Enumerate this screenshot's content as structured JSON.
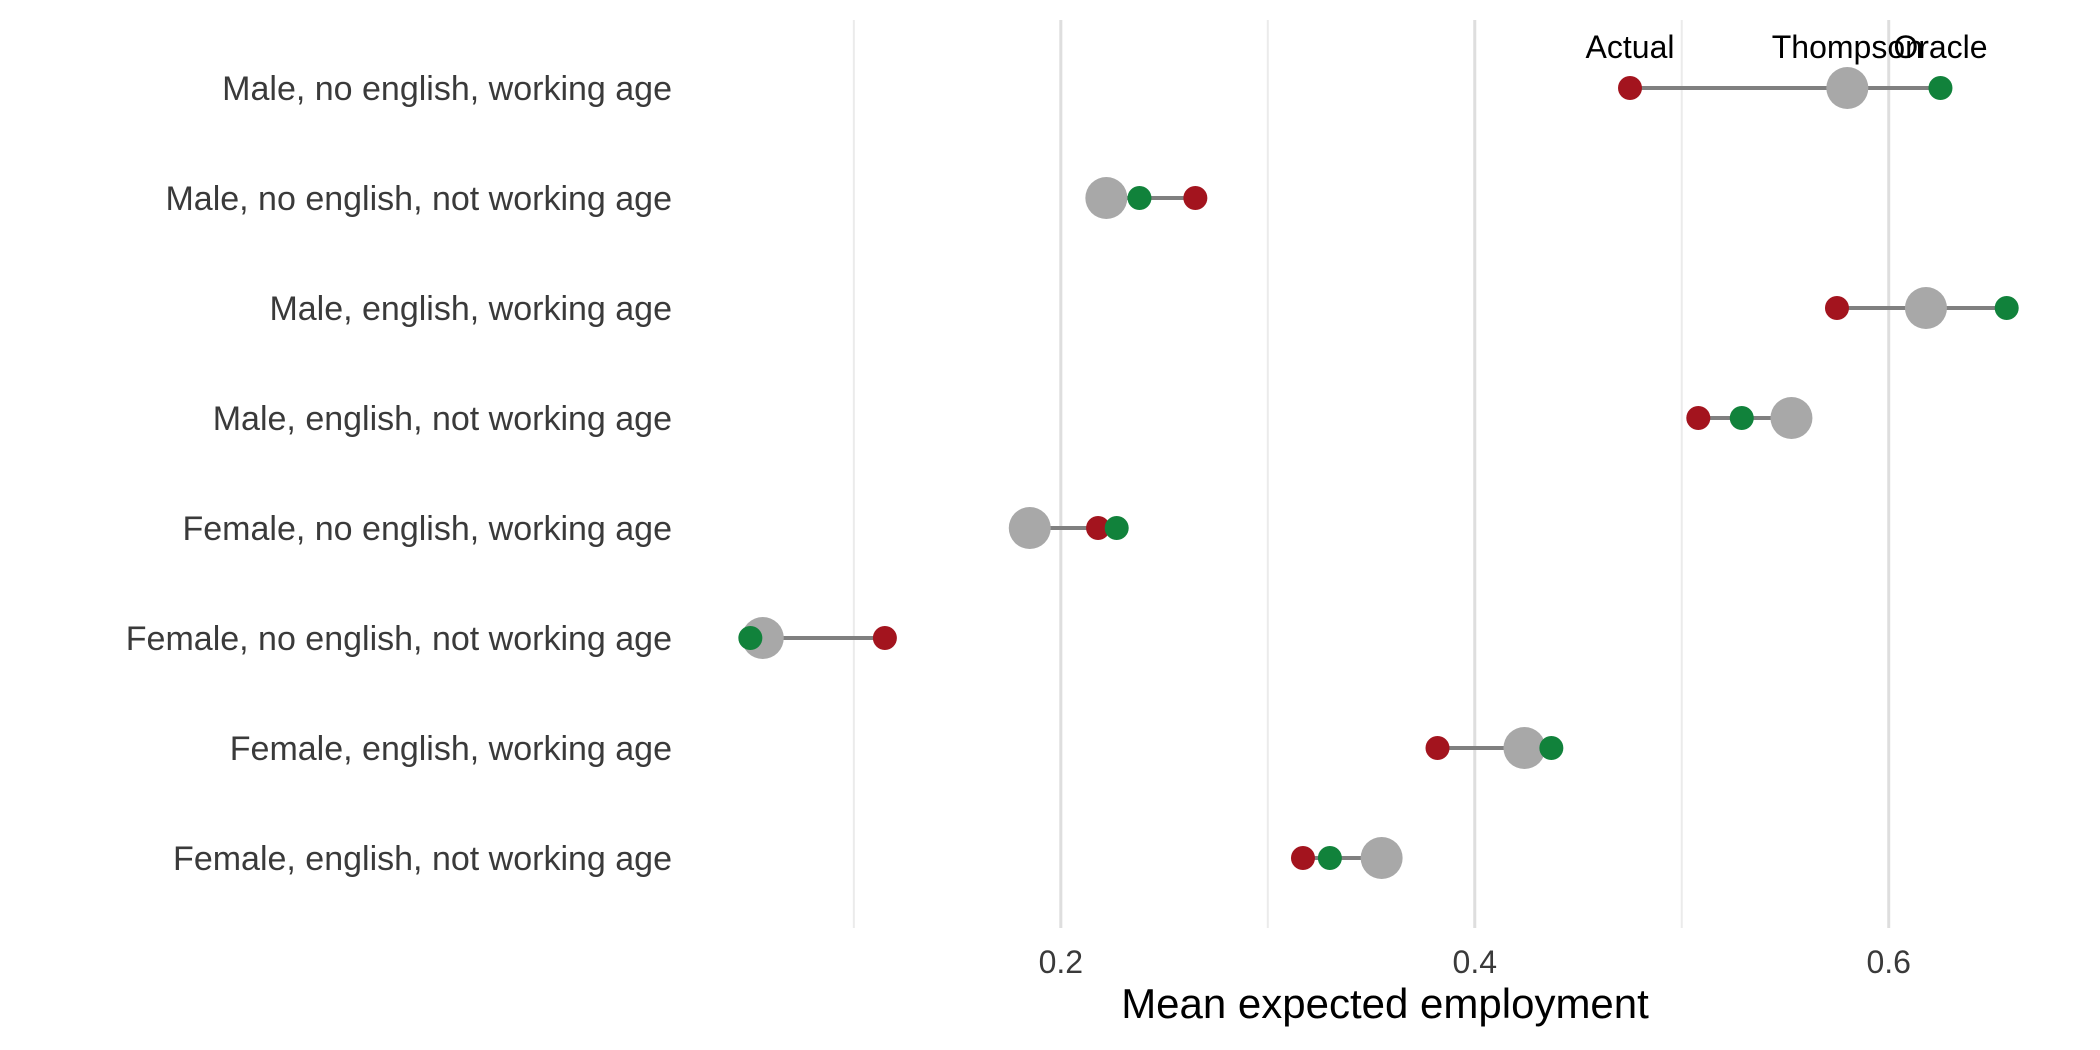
{
  "chart_data": {
    "type": "dumbbell",
    "xlabel": "Mean expected employment",
    "xlim": [
      0.045,
      0.69
    ],
    "major_ticks": [
      0.2,
      0.4,
      0.6
    ],
    "tick_labels": [
      "0.2",
      "0.4",
      "0.6"
    ],
    "minor_gridlines": [
      0.1,
      0.3,
      0.5
    ],
    "grid": true,
    "categories": [
      "Male, no english, working age",
      "Male, no english, not working age",
      "Male, english, working age",
      "Male, english, not working age",
      "Female, no english, working age",
      "Female, no english, not working age",
      "Female, english, working age",
      "Female, english, not working age"
    ],
    "series": [
      {
        "name": "Actual",
        "color": "#a3141e",
        "values": [
          0.475,
          0.265,
          0.575,
          0.508,
          0.218,
          0.115,
          0.382,
          0.317
        ]
      },
      {
        "name": "Thompson",
        "color": "#a8a8a8",
        "values": [
          0.58,
          0.222,
          0.618,
          0.553,
          0.185,
          0.056,
          0.424,
          0.355
        ]
      },
      {
        "name": "Oracle",
        "color": "#11823b",
        "values": [
          0.625,
          0.238,
          0.657,
          0.529,
          0.227,
          0.05,
          0.437,
          0.33
        ]
      }
    ],
    "annotations": [
      "Actual",
      "Thompson",
      "Oracle"
    ],
    "annotation_row": 0
  }
}
